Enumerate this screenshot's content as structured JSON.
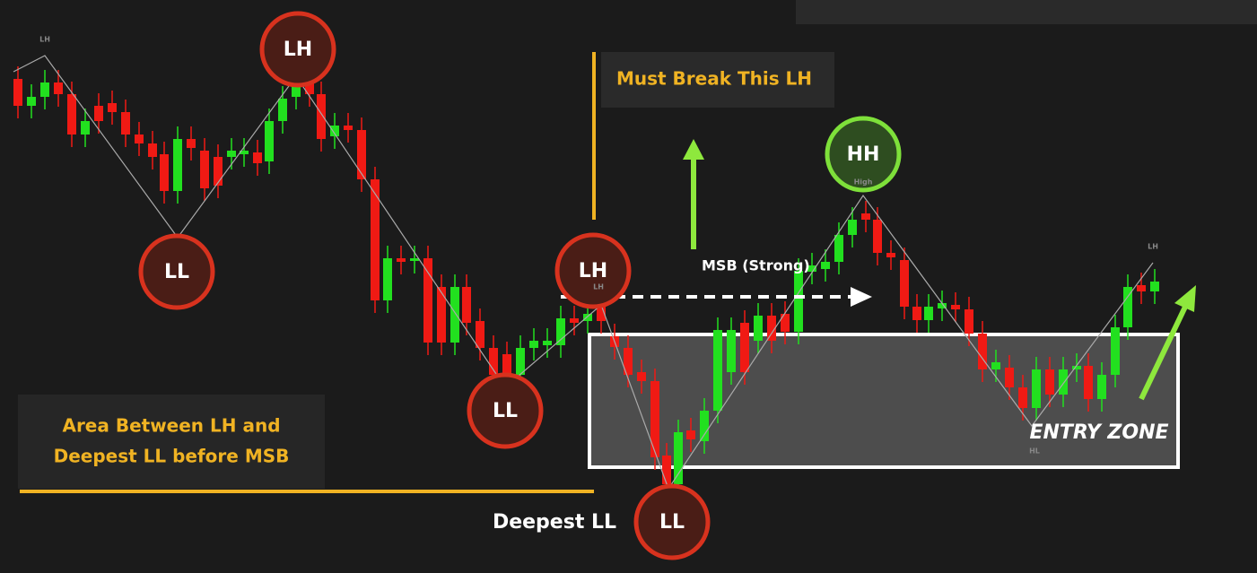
{
  "markers": [
    {
      "label": "LH"
    },
    {
      "label": "LL"
    },
    {
      "label": "LL"
    },
    {
      "label": "LH"
    },
    {
      "label": "HH"
    },
    {
      "label": "LL"
    }
  ],
  "small_labels": [
    "LH",
    "LH",
    "High",
    "HL",
    "LH"
  ],
  "callout": "Must Break This LH",
  "msb": "MSB (Strong)",
  "area_note": {
    "line1": "Area Between LH and",
    "line2": "Deepest LL before MSB"
  },
  "deepest": "Deepest LL",
  "entry_zone": "ENTRY ZONE"
}
